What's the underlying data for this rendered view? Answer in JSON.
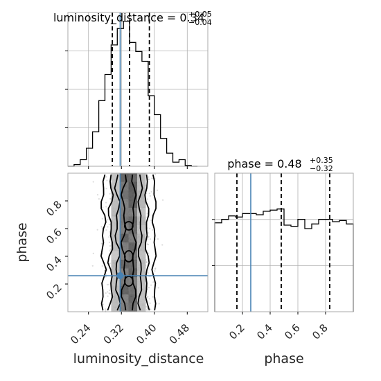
{
  "chart_data": {
    "type": "corner",
    "parameters": [
      "luminosity_distance",
      "phase"
    ],
    "truths": {
      "luminosity_distance": 0.317,
      "phase": 0.26
    },
    "colors": {
      "truth": "#4682b4",
      "hist": "#000000",
      "grid": "#b0b0b0",
      "density": "#000000"
    },
    "panels": [
      {
        "id": "hist_luminosity_distance",
        "type": "histogram",
        "title_main": "luminosity_distance = 0.34",
        "title_sup": "+0.05",
        "title_sub": "−0.04",
        "xlim": [
          0.19,
          0.53
        ],
        "bin_edges": [
          0.19,
          0.205,
          0.22,
          0.235,
          0.25,
          0.265,
          0.28,
          0.295,
          0.31,
          0.325,
          0.34,
          0.355,
          0.37,
          0.385,
          0.4,
          0.415,
          0.43,
          0.445,
          0.46,
          0.475,
          0.49,
          0.505
        ],
        "counts": [
          0,
          2,
          8,
          22,
          42,
          80,
          112,
          148,
          168,
          177,
          151,
          140,
          128,
          86,
          63,
          34,
          16,
          5,
          8,
          1,
          0
        ],
        "quantiles": [
          0.298,
          0.34,
          0.388
        ]
      },
      {
        "id": "hist_phase",
        "type": "histogram",
        "title_main": "phase = 0.48",
        "title_sup": "+0.35",
        "title_sub": "−0.32",
        "xlim": [
          0.0,
          1.0
        ],
        "xticks": [
          "0.2",
          "0.4",
          "0.6",
          "0.8"
        ],
        "xtick_values": [
          0.2,
          0.4,
          0.6,
          0.8
        ],
        "xlabel": "phase",
        "bin_edges": [
          0.0,
          0.05,
          0.1,
          0.15,
          0.2,
          0.25,
          0.3,
          0.35,
          0.4,
          0.45,
          0.5,
          0.55,
          0.6,
          0.65,
          0.7,
          0.75,
          0.8,
          0.85,
          0.9,
          0.95,
          1.0
        ],
        "counts": [
          77,
          80,
          83,
          82,
          85,
          85,
          84,
          87,
          88,
          89,
          75,
          74,
          80,
          72,
          76,
          80,
          80,
          78,
          79,
          76
        ],
        "ylim_max": 120,
        "quantiles": [
          0.16,
          0.48,
          0.83
        ]
      },
      {
        "id": "scatter_ld_phase",
        "type": "2d-density",
        "xlim": [
          0.19,
          0.53
        ],
        "ylim": [
          0.0,
          1.0
        ],
        "xticks": [
          "0.24",
          "0.32",
          "0.40",
          "0.48"
        ],
        "xtick_values": [
          0.24,
          0.32,
          0.4,
          0.48
        ],
        "yticks": [
          "0.2",
          "0.4",
          "0.6",
          "0.8"
        ],
        "ytick_values": [
          0.2,
          0.4,
          0.6,
          0.8
        ],
        "xlabel": "luminosity_distance",
        "ylabel": "phase",
        "center_x": 0.338,
        "contour_half_widths": [
          0.012,
          0.028,
          0.044,
          0.062
        ]
      }
    ]
  }
}
